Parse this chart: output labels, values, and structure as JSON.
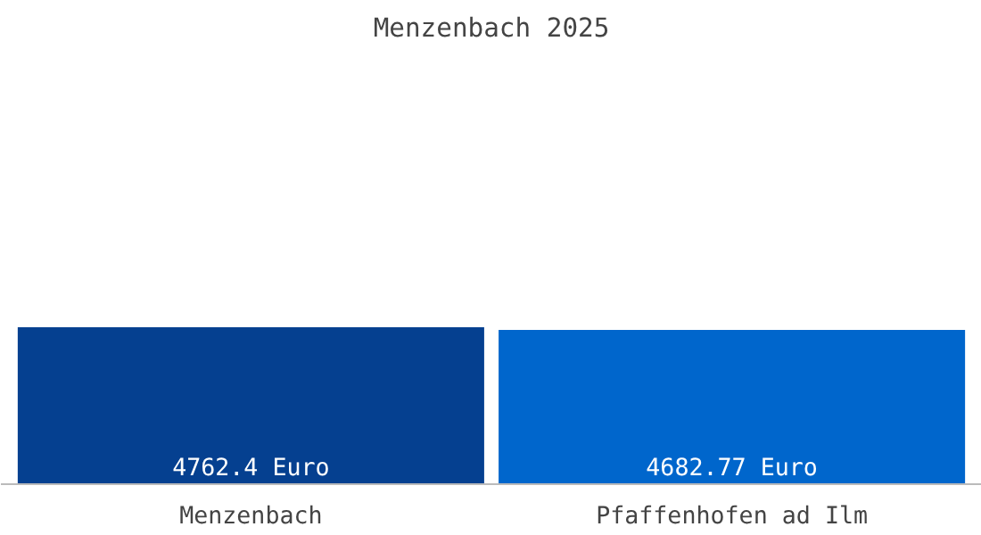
{
  "chart_data": {
    "type": "bar",
    "title": "Menzenbach 2025",
    "categories": [
      "Menzenbach",
      "Pfaffenhofen ad Ilm"
    ],
    "values": [
      4762.4,
      4682.77
    ],
    "colors": [
      "#054090",
      "#0066cc"
    ],
    "value_labels": [
      "4762.4 Euro",
      "4682.77 Euro"
    ]
  }
}
